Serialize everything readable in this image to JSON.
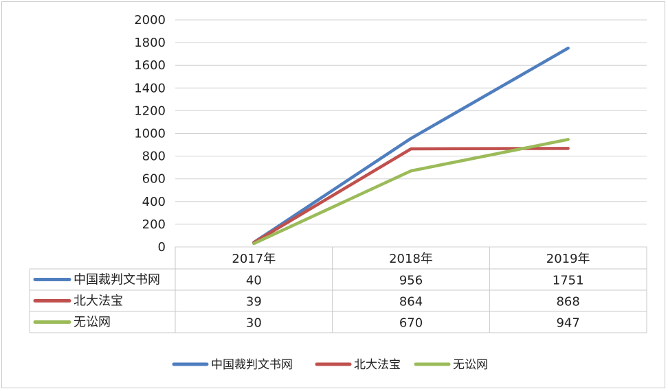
{
  "chart_data": {
    "type": "line",
    "title": "",
    "xlabel": "",
    "ylabel": "",
    "ylim": [
      0,
      2000
    ],
    "yticks": [
      0,
      200,
      400,
      600,
      800,
      1000,
      1200,
      1400,
      1600,
      1800,
      2000
    ],
    "grid": true,
    "legend": "bottom",
    "data_table": true,
    "categories": [
      "2017年",
      "2018年",
      "2019年"
    ],
    "series": [
      {
        "name": "中国裁判文书网",
        "color": "#4f7ebf",
        "values": [
          40,
          956,
          1751
        ]
      },
      {
        "name": "北大法宝",
        "color": "#c0504d",
        "values": [
          39,
          864,
          868
        ]
      },
      {
        "name": "无讼网",
        "color": "#9bbb59",
        "values": [
          30,
          670,
          947
        ]
      }
    ]
  }
}
